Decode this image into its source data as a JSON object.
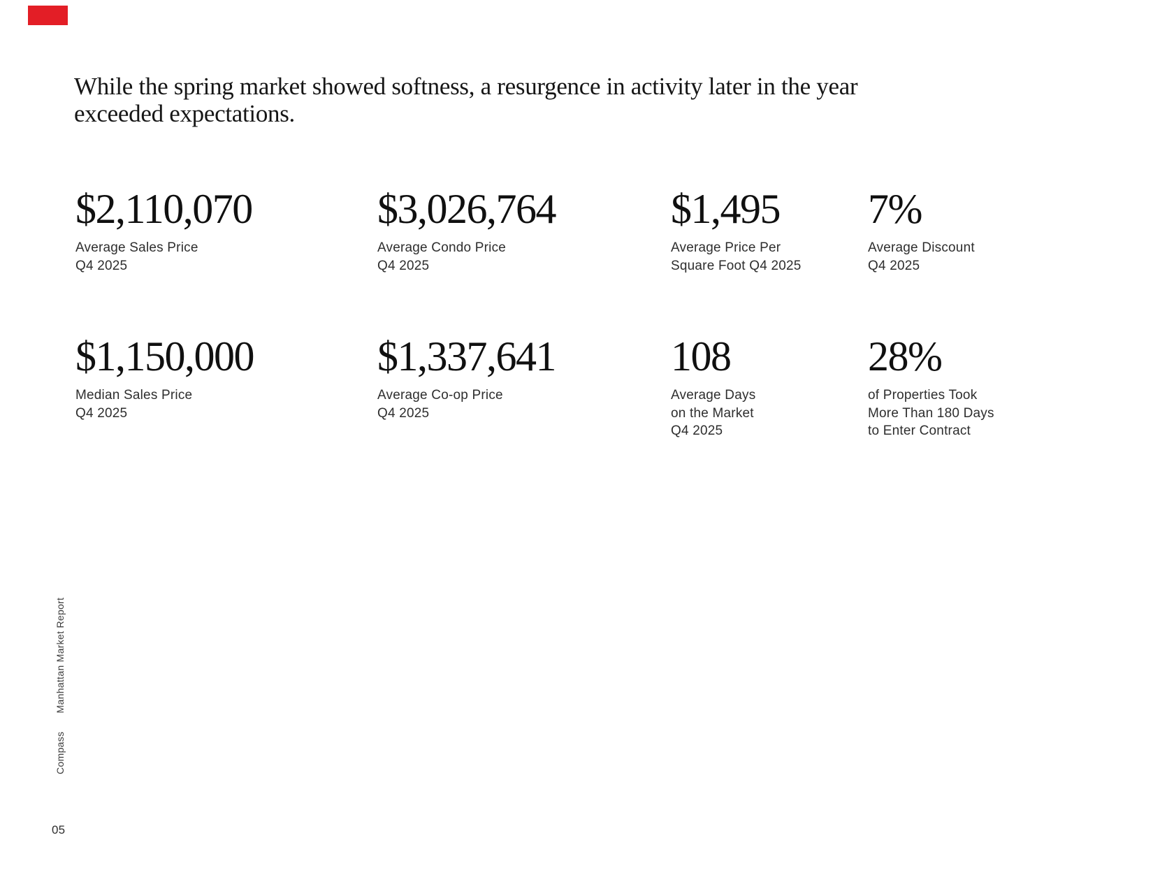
{
  "brand": {
    "accent_color": "#E31E26",
    "name": "Compass",
    "report_title": "Manhattan Market Report"
  },
  "headline": {
    "lines": [
      "While the spring market showed softness, a resurgence in activity later in the year",
      "exceeded expectations."
    ]
  },
  "stats": {
    "rows": [
      [
        {
          "value": "$2,110,070",
          "label_lines": [
            "Average Sales Price",
            "Q4 2025"
          ]
        },
        {
          "value": "$3,026,764",
          "label_lines": [
            "Average Condo Price",
            "Q4 2025"
          ]
        },
        {
          "value": "$1,495",
          "label_lines": [
            "Average Price Per",
            "Square Foot Q4 2025"
          ]
        },
        {
          "value": "7%",
          "label_lines": [
            "Average Discount",
            "Q4 2025"
          ]
        }
      ],
      [
        {
          "value": "$1,150,000",
          "label_lines": [
            "Median Sales Price",
            "Q4 2025"
          ]
        },
        {
          "value": "$1,337,641",
          "label_lines": [
            "Average Co-op Price",
            "Q4 2025"
          ]
        },
        {
          "value": "108",
          "label_lines": [
            "Average Days",
            "on the Market",
            "Q4 2025"
          ]
        },
        {
          "value": "28%",
          "label_lines": [
            "of Properties Took",
            "More Than 180 Days",
            "to Enter Contract"
          ]
        }
      ]
    ]
  },
  "footer": {
    "page_number": "05"
  }
}
